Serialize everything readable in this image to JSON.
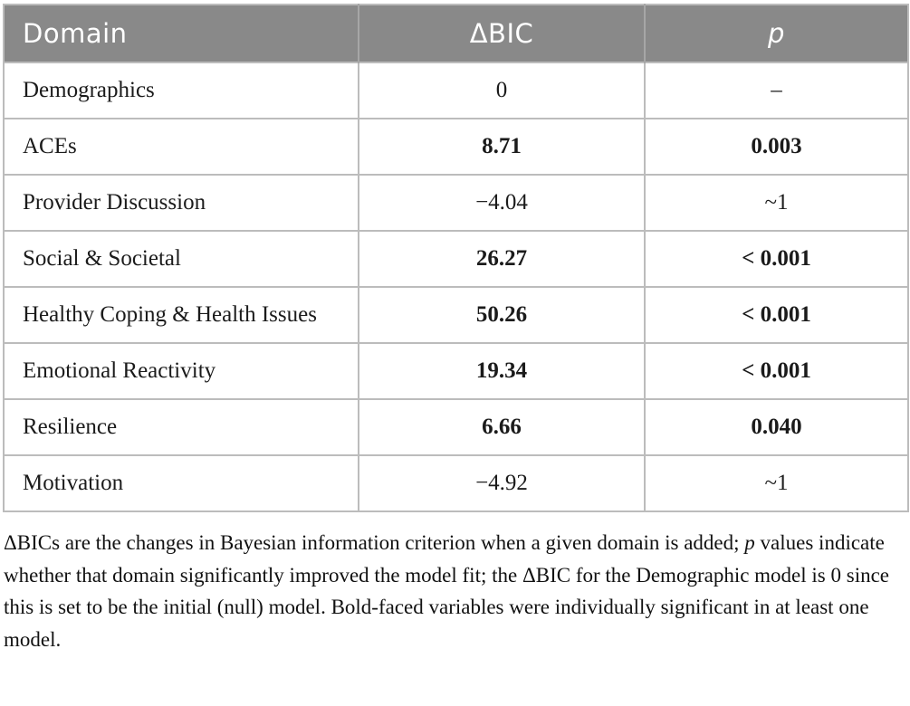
{
  "colors": {
    "header_bg": "#898989",
    "header_text": "#ffffff",
    "border": "#bcbcbc",
    "body_text": "#1b1b1b"
  },
  "table": {
    "columns": [
      {
        "key": "domain",
        "label": "Domain"
      },
      {
        "key": "delta_bic",
        "label": "ΔBIC"
      },
      {
        "key": "p",
        "label": "p"
      }
    ],
    "rows": [
      {
        "domain": "Demographics",
        "delta_bic": "0",
        "p": "–",
        "significant": false
      },
      {
        "domain": "ACEs",
        "delta_bic": "8.71",
        "p": "0.003",
        "significant": true
      },
      {
        "domain": "Provider Discussion",
        "delta_bic": "−4.04",
        "p": "~1",
        "significant": false
      },
      {
        "domain": "Social & Societal",
        "delta_bic": "26.27",
        "p": "< 0.001",
        "significant": true
      },
      {
        "domain": "Healthy Coping & Health Issues",
        "delta_bic": "50.26",
        "p": "< 0.001",
        "significant": true
      },
      {
        "domain": "Emotional Reactivity",
        "delta_bic": "19.34",
        "p": "< 0.001",
        "significant": true
      },
      {
        "domain": "Resilience",
        "delta_bic": "6.66",
        "p": "0.040",
        "significant": true
      },
      {
        "domain": "Motivation",
        "delta_bic": "−4.92",
        "p": "~1",
        "significant": false
      }
    ]
  },
  "footnote": {
    "segments": [
      {
        "text": "ΔBICs are the changes in Bayesian information criterion when a given domain is added; ",
        "italic": false
      },
      {
        "text": "p",
        "italic": true
      },
      {
        "text": " values indicate whether that domain significantly improved the model fit; the ΔBIC for the Demographic model is 0 since this is set to be the initial (null) model. Bold-faced variables were individually significant in at least one model.",
        "italic": false
      }
    ]
  }
}
